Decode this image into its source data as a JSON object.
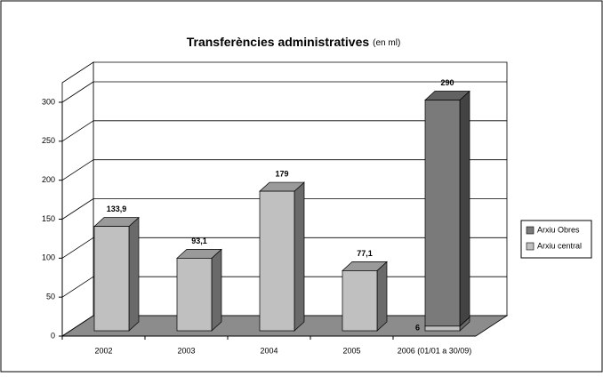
{
  "chart_data": {
    "type": "bar3d_stacked",
    "title": "Transferències administratives",
    "subtitle": "(en ml)",
    "categories": [
      "2002",
      "2003",
      "2004",
      "2005",
      "2006 (01/01 a 30/09)"
    ],
    "series": [
      {
        "name": "Arxiu central",
        "color": "#c0c0c0",
        "values": [
          133.9,
          93.1,
          179,
          77.1,
          6
        ],
        "value_labels": [
          "133,9",
          "93,1",
          "179",
          "77,1",
          "6"
        ]
      },
      {
        "name": "Arxiu Obres",
        "color": "#7a7a7a",
        "values": [
          null,
          null,
          null,
          null,
          290
        ],
        "value_labels": [
          null,
          null,
          null,
          null,
          "290"
        ]
      }
    ],
    "ylim": [
      0,
      300
    ],
    "yticks": [
      0,
      50,
      100,
      150,
      200,
      250,
      300
    ],
    "grid": true
  }
}
